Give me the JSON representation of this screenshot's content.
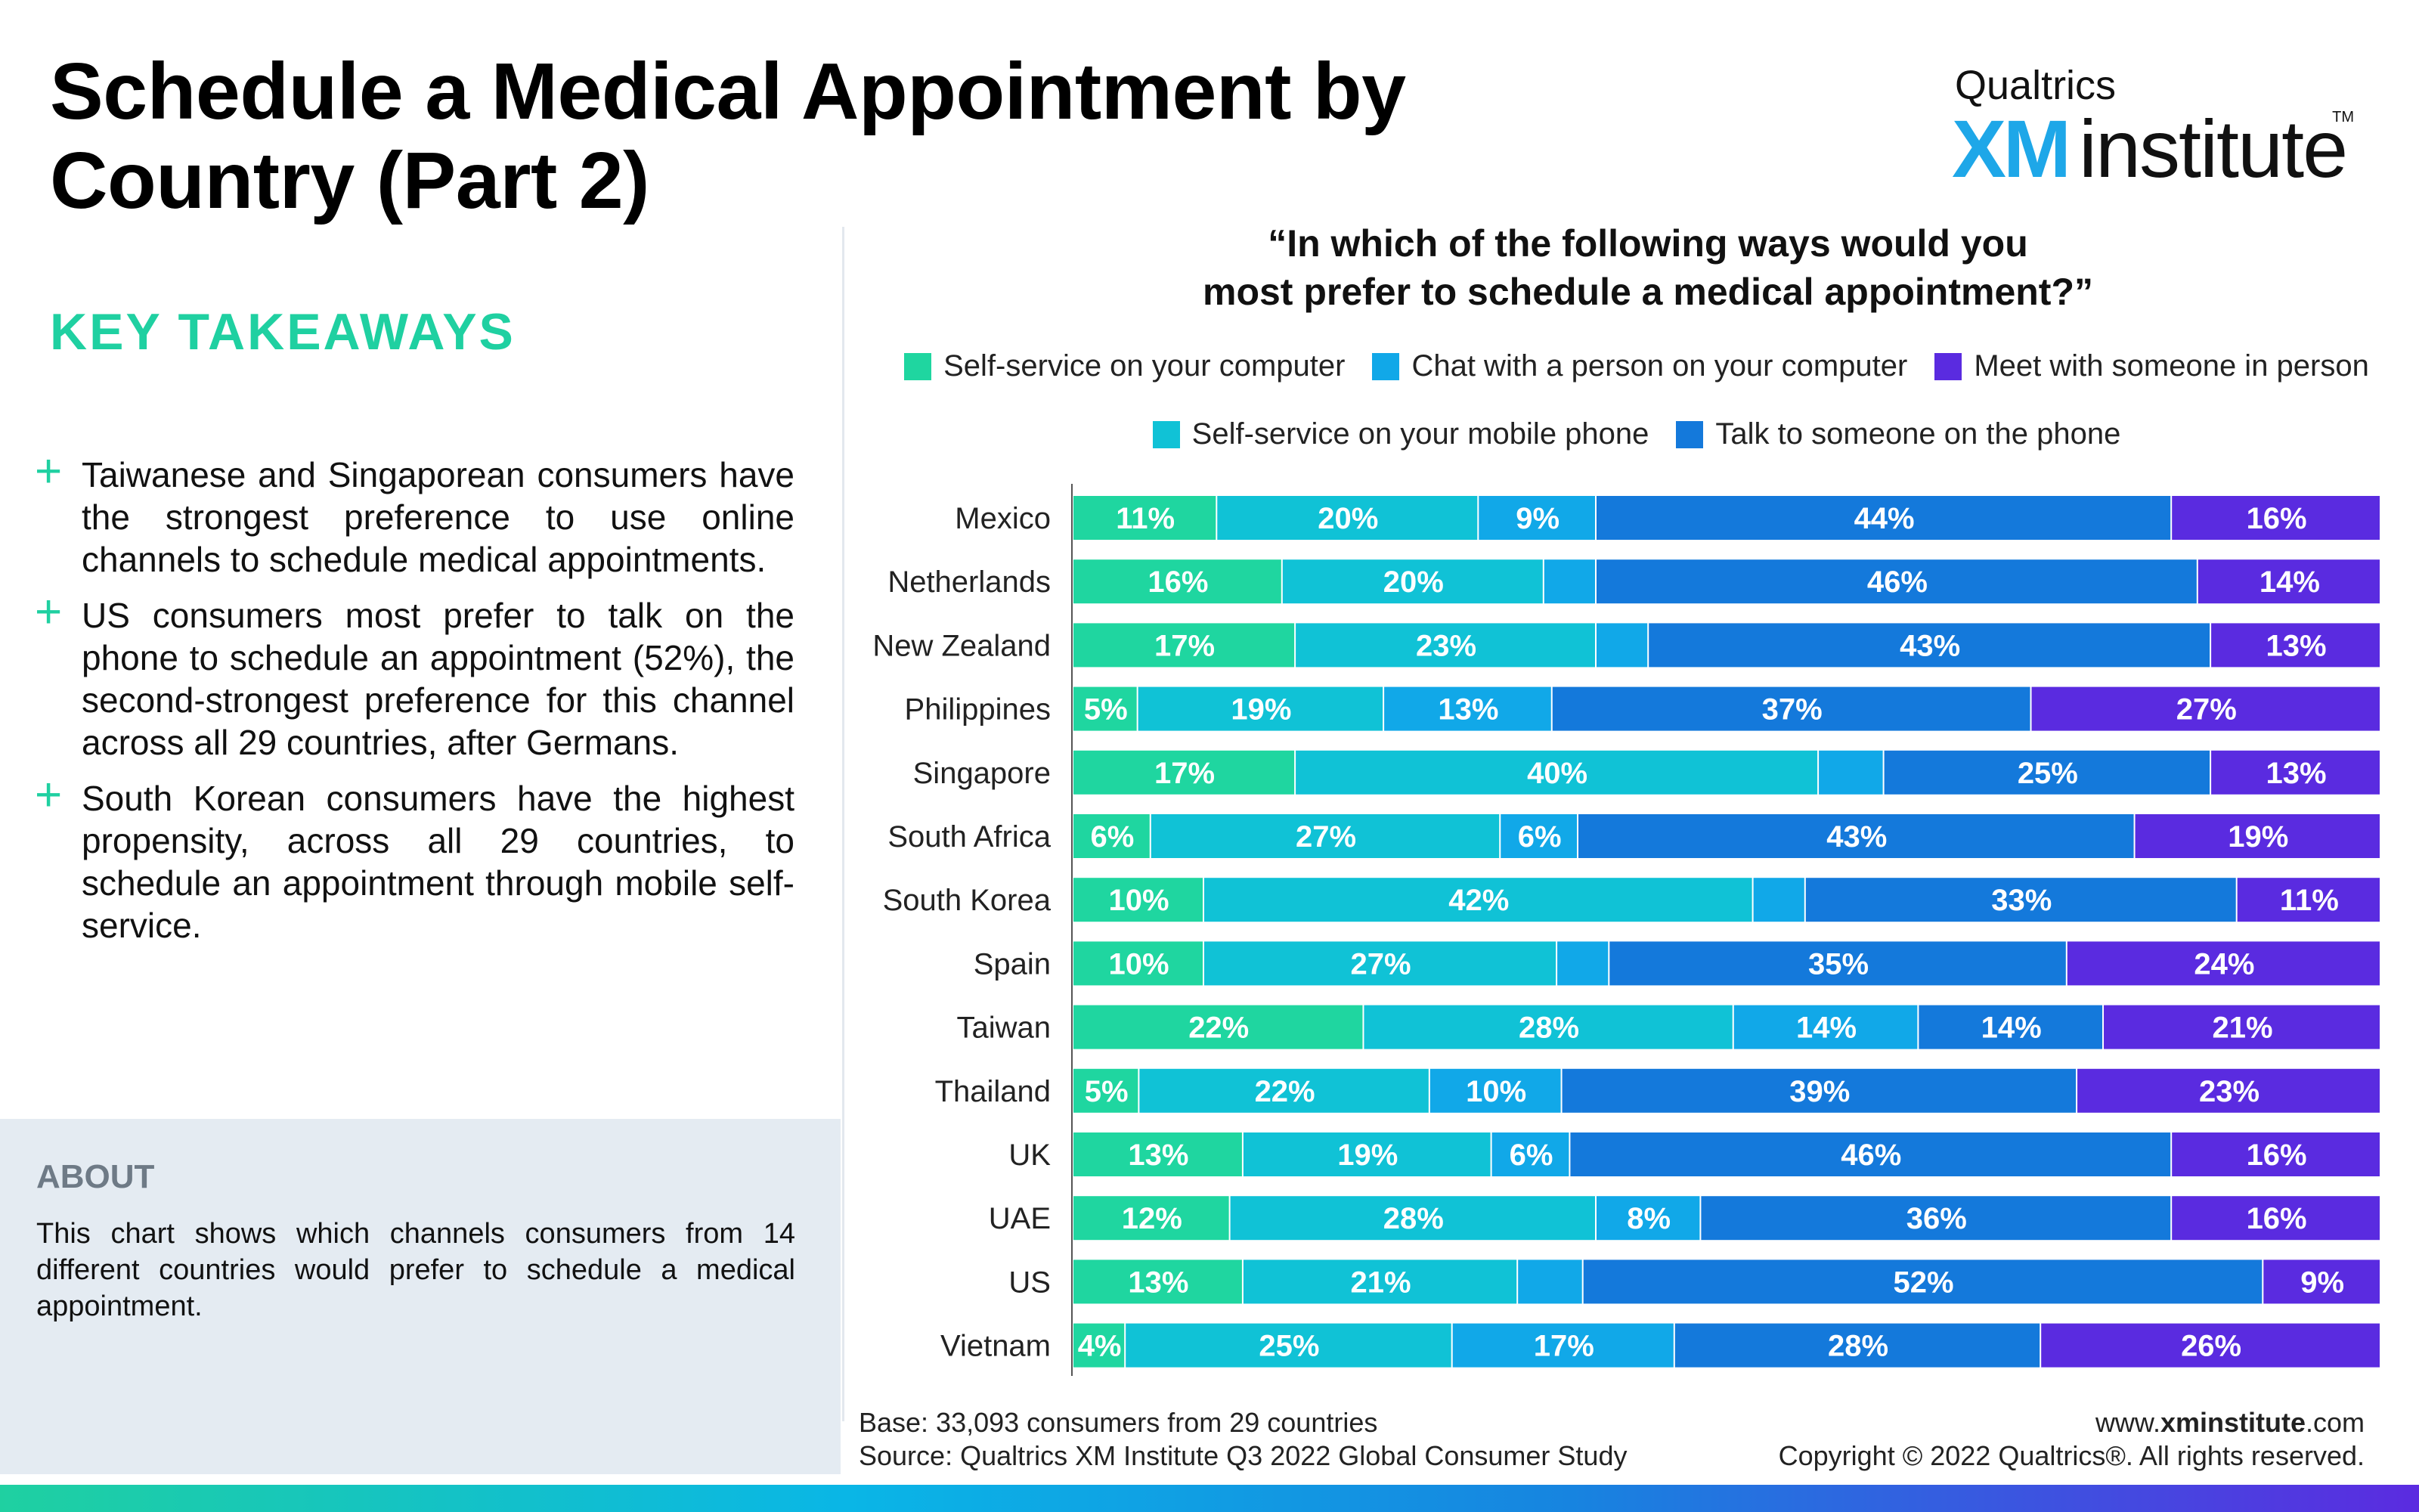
{
  "title": "Schedule a Medical Appointment by Country (Part 2)",
  "logo": {
    "top": "Qualtrics",
    "xm": "XM",
    "institute": "institute",
    "tm": "TM"
  },
  "key_takeaways": {
    "heading": "KEY TAKEAWAYS",
    "items": [
      "Taiwanese and Singaporean consumers have the strongest preference to use online channels to schedule medical appointments.",
      "US consumers most prefer to talk on the phone to schedule an appointment (52%), the second-strongest preference for this channel across all 29 countries, after Germans.",
      "South Korean consumers have the highest propensity, across all 29 countries, to schedule an appointment through mobile self-service."
    ]
  },
  "about": {
    "heading": "ABOUT",
    "text": "This chart shows which channels consumers from 14 different countries would prefer to schedule a medical appointment."
  },
  "footer": {
    "base": "Base: 33,093 consumers from 29 countries",
    "source": "Source: Qualtrics XM Institute Q3 2022 Global Consumer Study",
    "url_prefix": "www.",
    "url_bold": "xminstitute",
    "url_suffix": ".com",
    "copyright": "Copyright © 2022 Qualtrics®. All rights reserved."
  },
  "chart_data": {
    "type": "bar",
    "orientation": "horizontal-stacked-100",
    "title": "“In which of the following ways would you most prefer to schedule a medical appointment?”",
    "title_lines": [
      "“In which of the following ways would you",
      "most prefer to schedule a medical appointment?”"
    ],
    "categories": [
      "Mexico",
      "Netherlands",
      "New Zealand",
      "Philippines",
      "Singapore",
      "South Africa",
      "South Korea",
      "Spain",
      "Taiwan",
      "Thailand",
      "UK",
      "UAE",
      "US",
      "Vietnam"
    ],
    "series": [
      {
        "name": "Self-service on your computer",
        "color": "#1fd6a0",
        "values": [
          11,
          16,
          17,
          5,
          17,
          6,
          10,
          10,
          22,
          5,
          13,
          12,
          13,
          4
        ]
      },
      {
        "name": "Self-service on your mobile phone",
        "color": "#10c2d6",
        "values": [
          20,
          20,
          23,
          19,
          40,
          27,
          42,
          27,
          28,
          22,
          19,
          28,
          21,
          25
        ]
      },
      {
        "name": "Chat with a person on your computer",
        "color": "#11a8e8",
        "values": [
          9,
          4,
          4,
          13,
          5,
          6,
          4,
          4,
          14,
          10,
          6,
          8,
          5,
          17
        ]
      },
      {
        "name": "Talk to someone on the phone",
        "color": "#1479db",
        "values": [
          44,
          46,
          43,
          37,
          25,
          43,
          33,
          35,
          14,
          39,
          46,
          36,
          52,
          28
        ]
      },
      {
        "name": "Meet with someone in person",
        "color": "#5a2be0",
        "values": [
          16,
          14,
          13,
          27,
          13,
          19,
          11,
          24,
          21,
          23,
          16,
          16,
          9,
          26
        ]
      }
    ],
    "labels": [
      [
        "11%",
        "20%",
        "9%",
        "44%",
        "16%"
      ],
      [
        "16%",
        "20%",
        "",
        "46%",
        "14%"
      ],
      [
        "17%",
        "23%",
        "",
        "43%",
        "13%"
      ],
      [
        "5%",
        "19%",
        "13%",
        "37%",
        "27%"
      ],
      [
        "17%",
        "40%",
        "",
        "25%",
        "13%"
      ],
      [
        "6%",
        "27%",
        "6%",
        "43%",
        "19%"
      ],
      [
        "10%",
        "42%",
        "",
        "33%",
        "11%"
      ],
      [
        "10%",
        "27%",
        "",
        "35%",
        "24%"
      ],
      [
        "22%",
        "28%",
        "14%",
        "14%",
        "21%"
      ],
      [
        "5%",
        "22%",
        "10%",
        "39%",
        "23%"
      ],
      [
        "13%",
        "19%",
        "6%",
        "46%",
        "16%"
      ],
      [
        "12%",
        "28%",
        "8%",
        "36%",
        "16%"
      ],
      [
        "13%",
        "21%",
        "",
        "52%",
        "9%"
      ],
      [
        "4%",
        "25%",
        "17%",
        "28%",
        "26%"
      ]
    ],
    "legend": {
      "placement": "top",
      "row1": [
        "Self-service on your computer",
        "Chat with a person on your computer",
        "Meet with someone in person"
      ],
      "row2": [
        "Self-service on your mobile phone",
        "Talk to someone on the phone"
      ]
    },
    "xlim": [
      0,
      100
    ],
    "grid": false
  }
}
